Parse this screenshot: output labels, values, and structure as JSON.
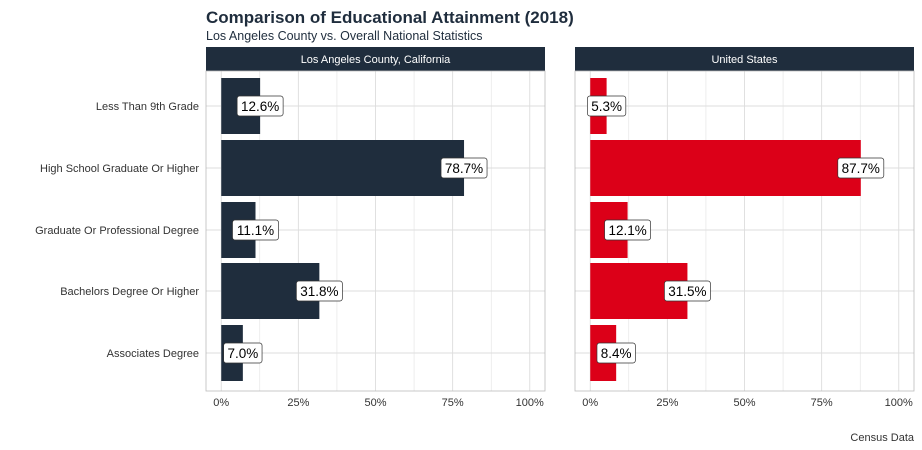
{
  "title": "Comparison of Educational Attainment (2018)",
  "subtitle": "Los Angeles County vs. Overall National Statistics",
  "caption": "Census Data",
  "colors": {
    "strip": "#1f2d3d",
    "la_bar": "#1f2d3d",
    "us_bar": "#dc0018",
    "grid": "#dddddd"
  },
  "chart_data": {
    "type": "bar",
    "orientation": "horizontal",
    "categories": [
      "Less Than 9th Grade",
      "High School Graduate Or Higher",
      "Graduate Or Professional Degree",
      "Bachelors Degree Or Higher",
      "Associates Degree"
    ],
    "xlim": [
      0,
      100
    ],
    "x_ticks": [
      "0%",
      "25%",
      "50%",
      "75%",
      "100%"
    ],
    "grid": true,
    "facets": [
      {
        "name": "Los Angeles County, California",
        "values": [
          12.6,
          78.7,
          11.1,
          31.8,
          7.0
        ],
        "labels": [
          "12.6%",
          "78.7%",
          "11.1%",
          "31.8%",
          "7.0%"
        ]
      },
      {
        "name": "United States",
        "values": [
          5.3,
          87.7,
          12.1,
          31.5,
          8.4
        ],
        "labels": [
          "5.3%",
          "87.7%",
          "12.1%",
          "31.5%",
          "8.4%"
        ]
      }
    ]
  }
}
